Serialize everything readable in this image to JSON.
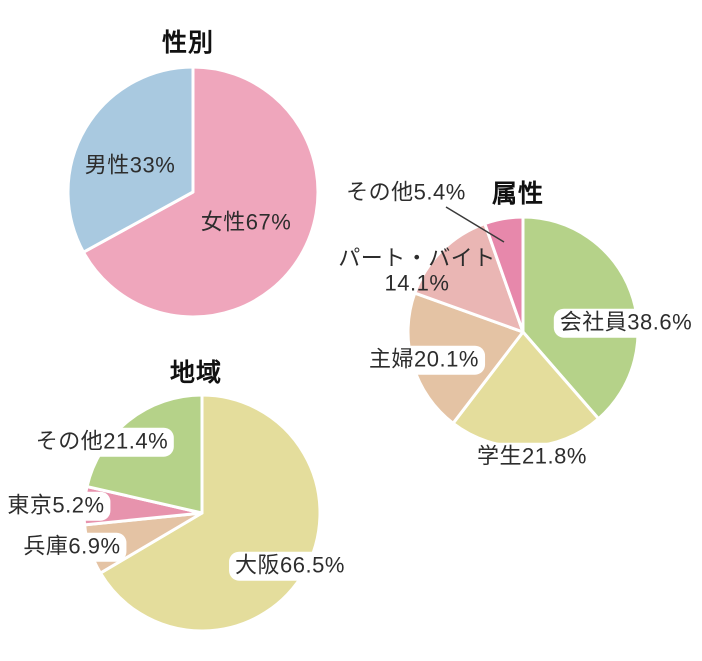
{
  "page": {
    "background": "#ffffff",
    "text_color": "#2d2d2d"
  },
  "chart_data": [
    {
      "type": "pie",
      "title": "性別",
      "start_angle": 0,
      "direction": "clockwise",
      "legend_position": "none",
      "slices": [
        {
          "key": "female",
          "label": "女性",
          "value": 67,
          "display": "女性67%",
          "color": "#efa6bc"
        },
        {
          "key": "male",
          "label": "男性",
          "value": 33,
          "display": "男性33%",
          "color": "#a9c9e0"
        }
      ]
    },
    {
      "type": "pie",
      "title": "属性",
      "start_angle": 0,
      "direction": "clockwise",
      "legend_position": "none",
      "slices": [
        {
          "key": "company-employee",
          "label": "会社員",
          "value": 38.6,
          "display": "会社員38.6%",
          "color": "#b5d289"
        },
        {
          "key": "student",
          "label": "学生",
          "value": 21.8,
          "display": "学生21.8%",
          "color": "#e4dd9c"
        },
        {
          "key": "housewife",
          "label": "主婦",
          "value": 20.1,
          "display": "主婦20.1%",
          "color": "#e4c3a4"
        },
        {
          "key": "part-time",
          "label": "パート・バイト",
          "value": 14.1,
          "display": "パート・バイト",
          "display2": "14.1%",
          "color": "#eab6b4"
        },
        {
          "key": "other",
          "label": "その他",
          "value": 5.4,
          "display": "その他5.4%",
          "color": "#e788ab",
          "callout": true
        }
      ]
    },
    {
      "type": "pie",
      "title": "地域",
      "start_angle": 0,
      "direction": "clockwise",
      "legend_position": "none",
      "slices": [
        {
          "key": "osaka",
          "label": "大阪",
          "value": 66.5,
          "display": "大阪66.5%",
          "color": "#e4dd9c"
        },
        {
          "key": "hyogo",
          "label": "兵庫",
          "value": 6.9,
          "display": "兵庫6.9%",
          "color": "#e4c3a4"
        },
        {
          "key": "tokyo",
          "label": "東京",
          "value": 5.2,
          "display": "東京5.2%",
          "color": "#e793ad"
        },
        {
          "key": "other",
          "label": "その他",
          "value": 21.4,
          "display": "その他21.4%",
          "color": "#b5d289"
        }
      ]
    }
  ]
}
